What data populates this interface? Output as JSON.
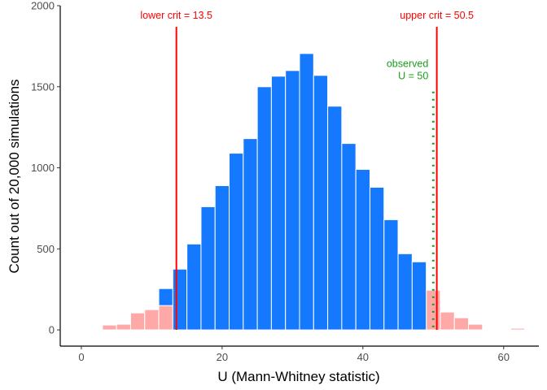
{
  "chart_data": {
    "type": "bar",
    "xlabel": "U (Mann-Whitney statistic)",
    "ylabel": "Count out of 20,000 simulations",
    "xlim": [
      -3,
      65
    ],
    "ylim": [
      -100,
      2000
    ],
    "x_ticks": [
      0,
      20,
      40,
      60
    ],
    "y_ticks": [
      0,
      500,
      1000,
      1500,
      2000
    ],
    "bin_width": 2,
    "grid": false,
    "bins": [
      {
        "x": 2,
        "count": 5,
        "region": "tail"
      },
      {
        "x": 4,
        "count": 30,
        "region": "tail"
      },
      {
        "x": 6,
        "count": 35,
        "region": "tail"
      },
      {
        "x": 8,
        "count": 105,
        "region": "tail"
      },
      {
        "x": 10,
        "count": 125,
        "region": "tail"
      },
      {
        "x": 12,
        "count": 150,
        "region": "tail"
      },
      {
        "x": 12,
        "count": 105,
        "region": "center",
        "stack_on": 150
      },
      {
        "x": 14,
        "count": 375,
        "region": "center"
      },
      {
        "x": 16,
        "count": 530,
        "region": "center"
      },
      {
        "x": 18,
        "count": 760,
        "region": "center"
      },
      {
        "x": 20,
        "count": 890,
        "region": "center"
      },
      {
        "x": 22,
        "count": 1090,
        "region": "center"
      },
      {
        "x": 24,
        "count": 1180,
        "region": "center"
      },
      {
        "x": 26,
        "count": 1500,
        "region": "center"
      },
      {
        "x": 28,
        "count": 1565,
        "region": "center"
      },
      {
        "x": 30,
        "count": 1600,
        "region": "center"
      },
      {
        "x": 32,
        "count": 1705,
        "region": "center"
      },
      {
        "x": 34,
        "count": 1570,
        "region": "center"
      },
      {
        "x": 36,
        "count": 1380,
        "region": "center"
      },
      {
        "x": 38,
        "count": 1150,
        "region": "center"
      },
      {
        "x": 40,
        "count": 990,
        "region": "center"
      },
      {
        "x": 42,
        "count": 880,
        "region": "center"
      },
      {
        "x": 44,
        "count": 680,
        "region": "center"
      },
      {
        "x": 46,
        "count": 470,
        "region": "center"
      },
      {
        "x": 48,
        "count": 420,
        "region": "center"
      },
      {
        "x": 50,
        "count": 245,
        "region": "tail"
      },
      {
        "x": 52,
        "count": 110,
        "region": "tail"
      },
      {
        "x": 54,
        "count": 75,
        "region": "tail"
      },
      {
        "x": 56,
        "count": 35,
        "region": "tail"
      },
      {
        "x": 58,
        "count": 5,
        "region": "tail"
      },
      {
        "x": 60,
        "count": 5,
        "region": "tail"
      },
      {
        "x": 62,
        "count": 10,
        "region": "tail"
      }
    ],
    "critical_lines": [
      {
        "x": 13.5,
        "label": "lower crit = 13.5"
      },
      {
        "x": 50.5,
        "label": "upper crit = 50.5"
      }
    ],
    "observed": {
      "x": 50,
      "line_top": 1470,
      "label_lines": [
        "observed",
        "U = 50"
      ]
    },
    "colors": {
      "center": "#1479ff",
      "tail": "#ffa8a8",
      "bar_edge": "#ffffff",
      "critical": "#ff0000",
      "observed": "#1a9e1a",
      "axis": "#000000",
      "tick_text": "#4d4d4d"
    }
  }
}
